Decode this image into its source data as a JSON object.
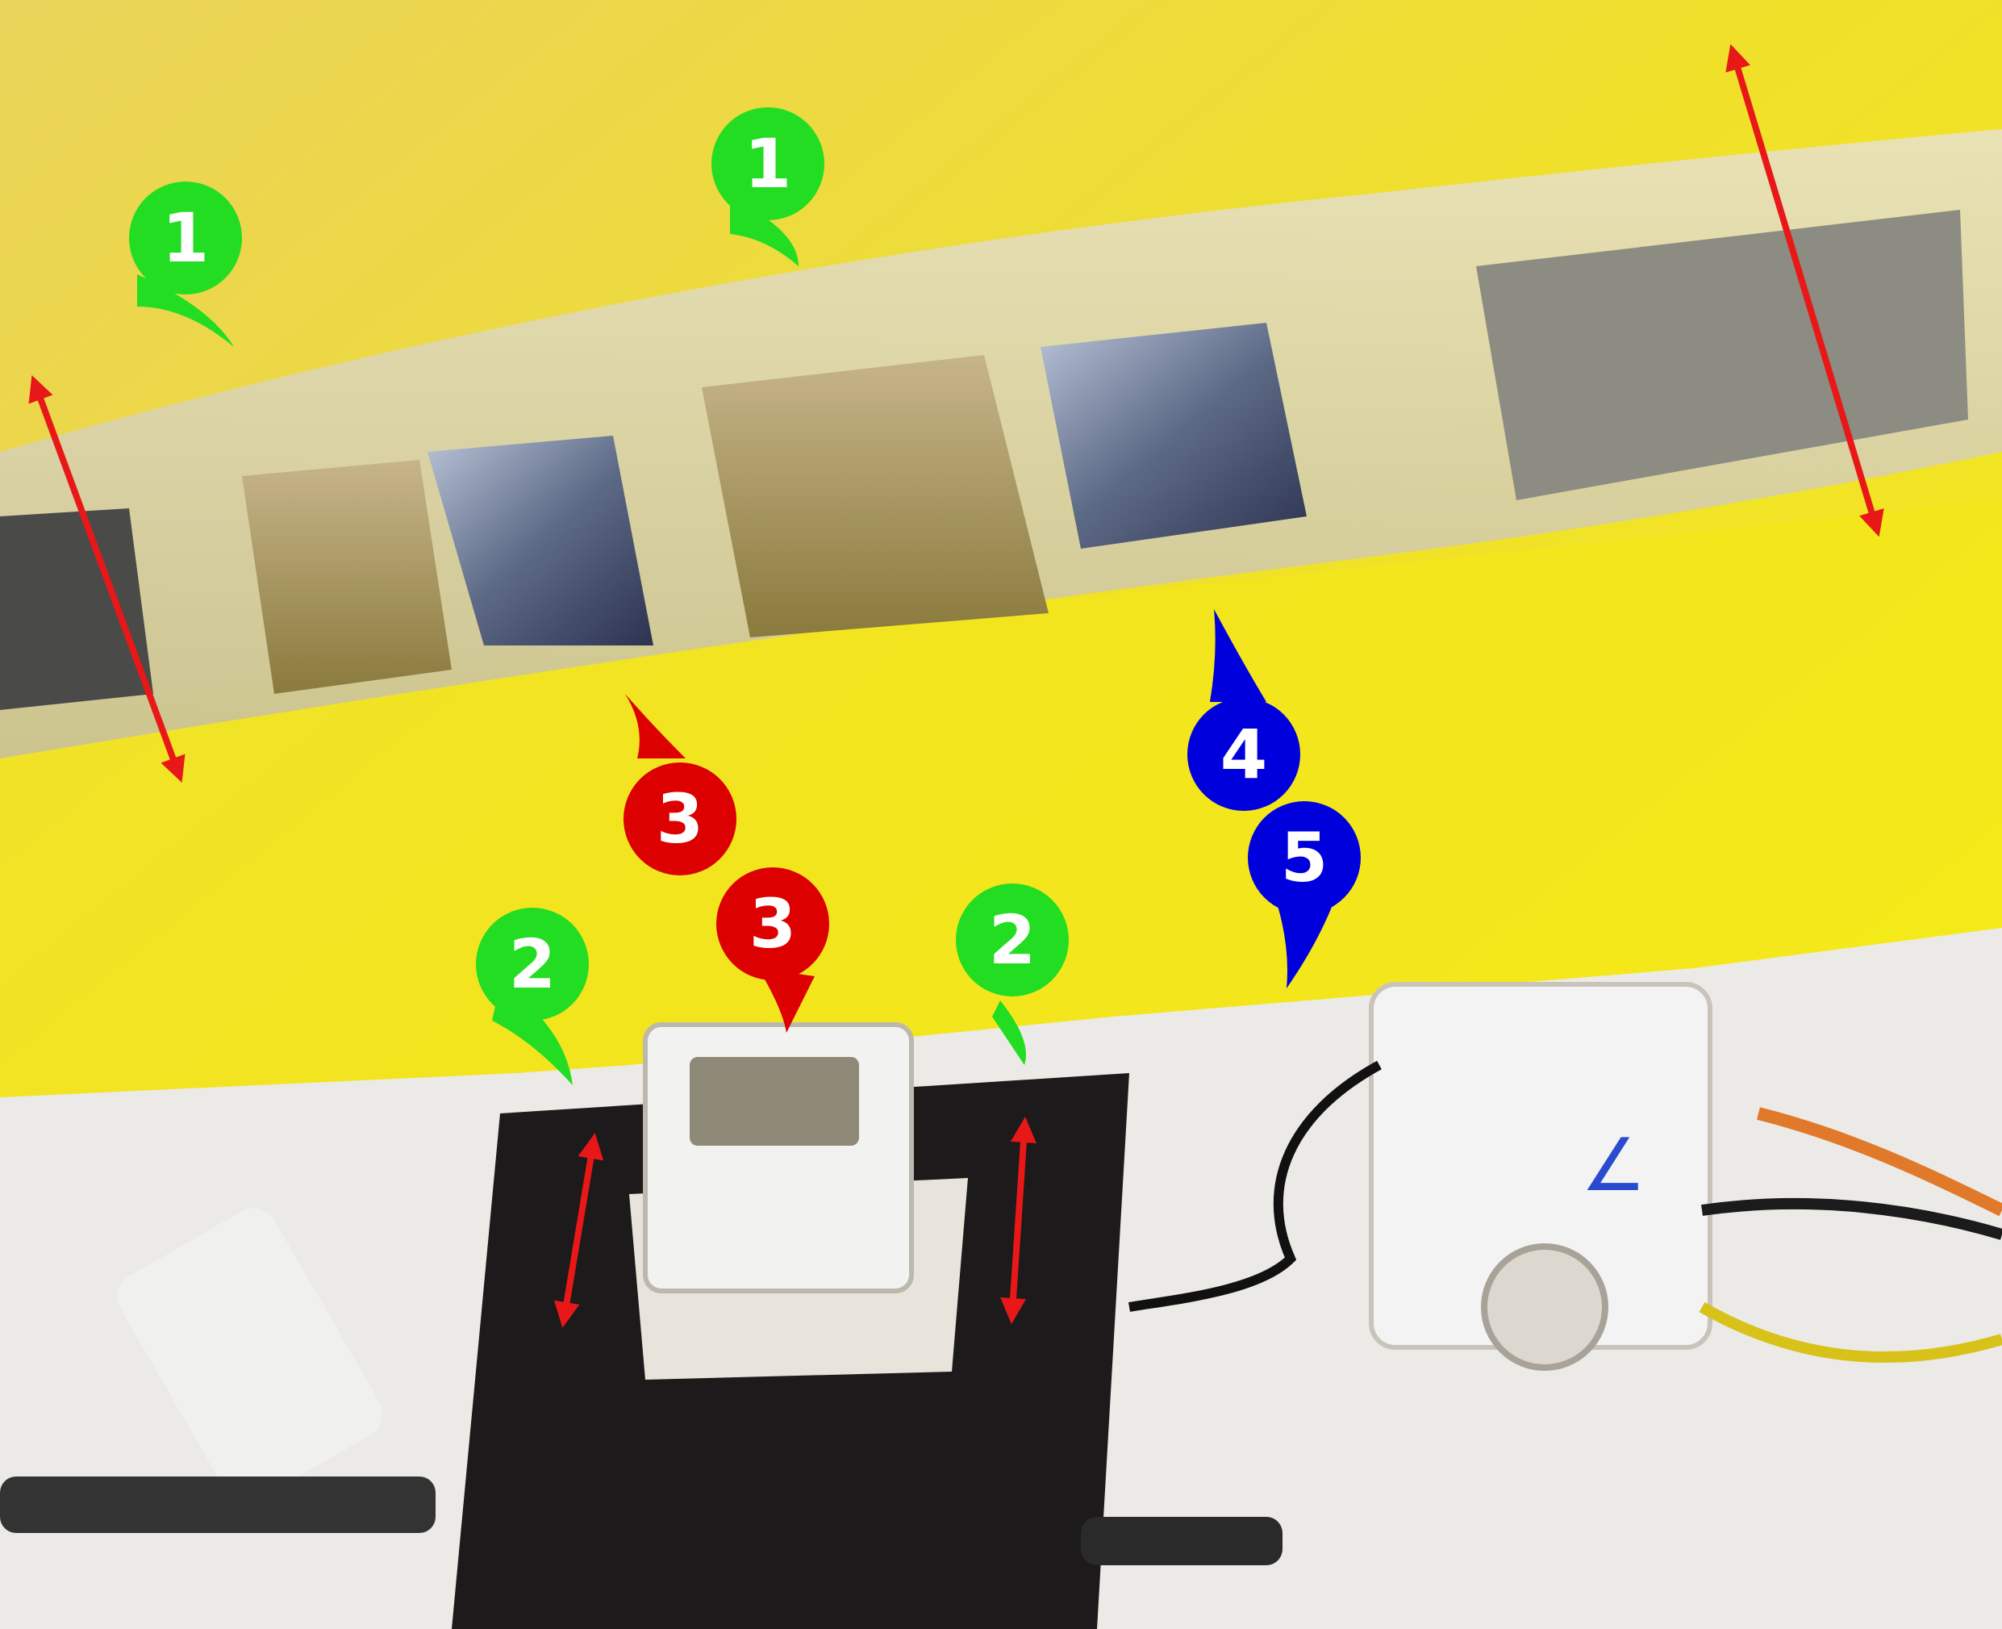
{
  "colors": {
    "green": "#22dd22",
    "red": "#dd0000",
    "blue": "#0000dd",
    "arrow": "#e81818"
  },
  "markers": {
    "m1a": "1",
    "m1b": "1",
    "m2a": "2",
    "m2b": "2",
    "m3a": "3",
    "m3b": "3",
    "m4": "4",
    "m5": "5"
  },
  "handwriting": "∠"
}
